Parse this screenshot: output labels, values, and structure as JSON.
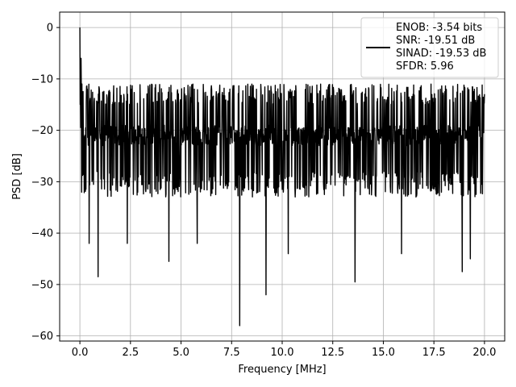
{
  "chart_data": {
    "type": "line",
    "title": "",
    "xlabel": "Frequency [MHz]",
    "ylabel": "PSD [dB]",
    "xlim": [
      -1.0,
      21.0
    ],
    "ylim": [
      -61.0,
      3.0
    ],
    "xticks": [
      0.0,
      2.5,
      5.0,
      7.5,
      10.0,
      12.5,
      15.0,
      17.5,
      20.0
    ],
    "xtick_labels": [
      "0.0",
      "2.5",
      "5.0",
      "7.5",
      "10.0",
      "12.5",
      "15.0",
      "17.5",
      "20.0"
    ],
    "yticks": [
      0,
      -10,
      -20,
      -30,
      -40,
      -50,
      -60
    ],
    "ytick_labels": [
      "0",
      "−10",
      "−20",
      "−30",
      "−40",
      "−50",
      "−60"
    ],
    "grid": true,
    "legend_position": "top-right",
    "series": [
      {
        "color": "#000000",
        "legend_lines": [
          "ENOB: -3.54 bits",
          "SNR: -19.51 dB",
          "SINAD: -19.53 dB",
          "SFDR: 5.96"
        ],
        "x_range": [
          0.0,
          20.0
        ],
        "noise_band": {
          "mean": -21,
          "upper": -11,
          "lower": -33
        },
        "peaks": [
          {
            "x": 0.0,
            "y": 0.0
          },
          {
            "x": 0.05,
            "y": -6
          },
          {
            "x": 0.1,
            "y": -11
          }
        ],
        "dips": [
          {
            "x": 0.45,
            "y": -42
          },
          {
            "x": 0.9,
            "y": -48.5
          },
          {
            "x": 2.35,
            "y": -42
          },
          {
            "x": 4.4,
            "y": -45.5
          },
          {
            "x": 5.8,
            "y": -42
          },
          {
            "x": 7.9,
            "y": -58
          },
          {
            "x": 9.2,
            "y": -52
          },
          {
            "x": 10.3,
            "y": -44
          },
          {
            "x": 13.6,
            "y": -49.5
          },
          {
            "x": 15.9,
            "y": -44
          },
          {
            "x": 18.9,
            "y": -47.5
          },
          {
            "x": 19.3,
            "y": -45
          }
        ]
      }
    ]
  }
}
